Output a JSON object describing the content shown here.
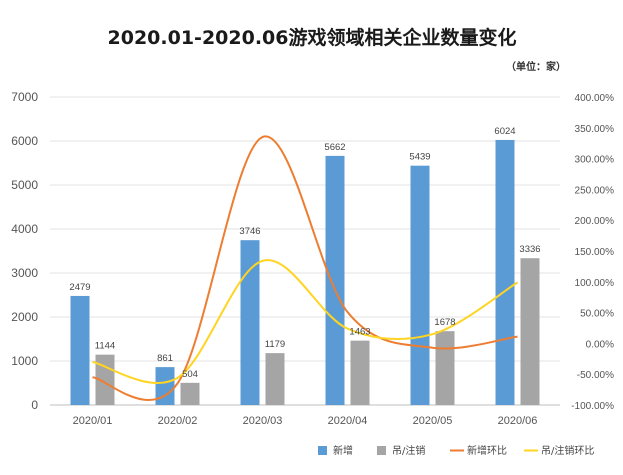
{
  "chart_data": {
    "type": "bar",
    "title": "2020.01-2020.06游戏领域相关企业数量变化",
    "unit_note": "（单位：家）",
    "categories": [
      "2020/01",
      "2020/02",
      "2020/03",
      "2020/04",
      "2020/05",
      "2020/06"
    ],
    "series": [
      {
        "name": "新增",
        "type": "bar",
        "axis": "left",
        "color": "#5b9bd5",
        "values": [
          2479,
          861,
          3746,
          5662,
          5439,
          6024
        ],
        "labels": [
          "2479",
          "861",
          "3746",
          "5662",
          "5439",
          "6024"
        ]
      },
      {
        "name": "吊/注销",
        "type": "bar",
        "axis": "left",
        "color": "#a5a5a5",
        "values": [
          1144,
          504,
          1179,
          1463,
          1678,
          3336
        ],
        "labels": [
          "1144",
          "504",
          "1179",
          "1463",
          "1678",
          "3336"
        ]
      },
      {
        "name": "新增环比",
        "type": "line",
        "axis": "right",
        "color": "#ed7d31",
        "values": [
          -55,
          -65,
          335,
          51,
          -7,
          11
        ]
      },
      {
        "name": "吊/注销环比",
        "type": "line",
        "axis": "right",
        "color": "#ffd422",
        "values": [
          -30,
          -56,
          134,
          24,
          15,
          99
        ]
      }
    ],
    "y_left": {
      "ylim": [
        0,
        7000
      ],
      "ticks": [
        "0",
        "1000",
        "2000",
        "3000",
        "4000",
        "5000",
        "6000",
        "7000"
      ]
    },
    "y_right": {
      "ylim": [
        -100,
        400
      ],
      "ticks": [
        "-100.00%",
        "-50.00%",
        "0.00%",
        "50.00%",
        "100.00%",
        "150.00%",
        "200.00%",
        "250.00%",
        "300.00%",
        "350.00%",
        "400.00%"
      ]
    },
    "grid": true,
    "legend_position": "bottom-right"
  }
}
